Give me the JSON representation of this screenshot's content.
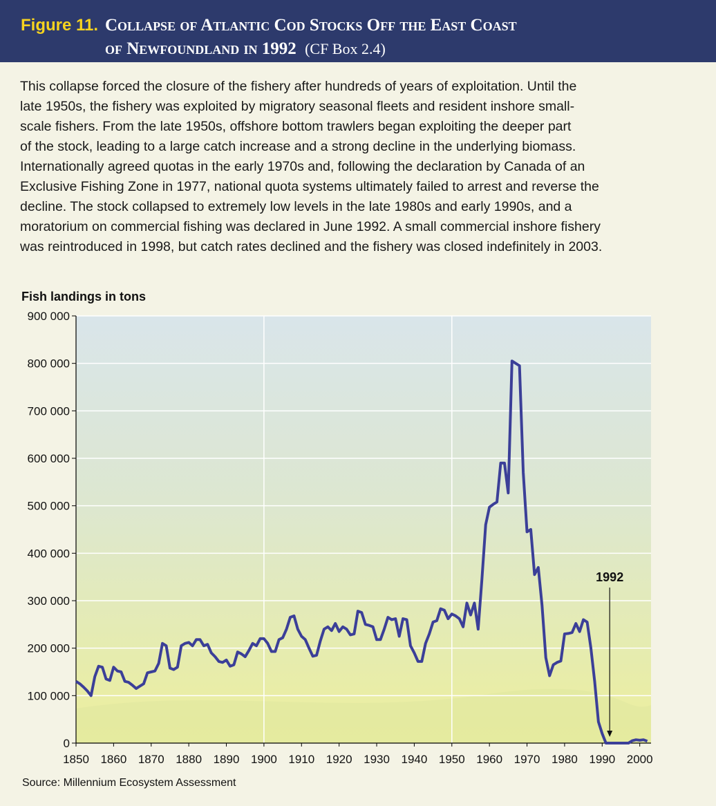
{
  "header": {
    "figure": "Figure 11.",
    "title": [
      "Collapse of Atlantic Cod Stocks Off the East Coast",
      "of Newfoundland in 1992"
    ],
    "note": "(CF Box 2.4)"
  },
  "body": [
    "This collapse forced the closure of the fishery after hundreds of years of exploitation. Until the",
    "late 1950s, the fishery was exploited by migratory seasonal fleets and resident inshore small-",
    "scale fishers. From the late 1950s, offshore bottom trawlers began exploiting the deeper part",
    "of the stock, leading to a large catch increase and a strong decline in the underlying biomass.",
    "Internationally agreed quotas in the early 1970s and, following the declaration by Canada of an",
    "Exclusive Fishing Zone in 1977, national quota systems ultimately failed to arrest and reverse the",
    "decline. The stock collapsed to extremely low levels in the late 1980s and early 1990s, and a",
    "moratorium on commercial fishing was declared in June 1992. A small commercial inshore fishery",
    "was reintroduced in 1998, but catch rates declined and the fishery was closed indefinitely in 2003."
  ],
  "chart_data": {
    "type": "line",
    "ylabel": "Fish landings in tons",
    "source": "Source: Millennium Ecosystem Assessment",
    "x": [
      1850,
      1851,
      1852,
      1853,
      1854,
      1855,
      1856,
      1857,
      1858,
      1859,
      1860,
      1861,
      1862,
      1863,
      1864,
      1865,
      1866,
      1867,
      1868,
      1869,
      1870,
      1871,
      1872,
      1873,
      1874,
      1875,
      1876,
      1877,
      1878,
      1879,
      1880,
      1881,
      1882,
      1883,
      1884,
      1885,
      1886,
      1887,
      1888,
      1889,
      1890,
      1891,
      1892,
      1893,
      1894,
      1895,
      1896,
      1897,
      1898,
      1899,
      1900,
      1901,
      1902,
      1903,
      1904,
      1905,
      1906,
      1907,
      1908,
      1909,
      1910,
      1911,
      1912,
      1913,
      1914,
      1915,
      1916,
      1917,
      1918,
      1919,
      1920,
      1921,
      1922,
      1923,
      1924,
      1925,
      1926,
      1927,
      1928,
      1929,
      1930,
      1931,
      1932,
      1933,
      1934,
      1935,
      1936,
      1937,
      1938,
      1939,
      1940,
      1941,
      1942,
      1943,
      1944,
      1945,
      1946,
      1947,
      1948,
      1949,
      1950,
      1951,
      1952,
      1953,
      1954,
      1955,
      1956,
      1957,
      1958,
      1959,
      1960,
      1961,
      1962,
      1963,
      1964,
      1965,
      1966,
      1967,
      1968,
      1969,
      1970,
      1971,
      1972,
      1973,
      1974,
      1975,
      1976,
      1977,
      1978,
      1979,
      1980,
      1981,
      1982,
      1983,
      1984,
      1985,
      1986,
      1987,
      1988,
      1989,
      1990,
      1991,
      1992,
      1993,
      1994,
      1995,
      1996,
      1997,
      1998,
      1999,
      2000,
      2001,
      2002
    ],
    "series": [
      {
        "name": "Fish landings",
        "color": "#3b3f98",
        "values": [
          130000,
          125000,
          118000,
          110000,
          100000,
          140000,
          162000,
          160000,
          135000,
          132000,
          160000,
          152000,
          150000,
          130000,
          128000,
          122000,
          115000,
          120000,
          125000,
          148000,
          150000,
          152000,
          168000,
          210000,
          205000,
          158000,
          155000,
          160000,
          205000,
          210000,
          212000,
          205000,
          218000,
          218000,
          205000,
          208000,
          190000,
          182000,
          172000,
          170000,
          175000,
          162000,
          165000,
          192000,
          188000,
          182000,
          195000,
          210000,
          205000,
          220000,
          220000,
          210000,
          193000,
          193000,
          218000,
          222000,
          240000,
          265000,
          268000,
          240000,
          225000,
          218000,
          200000,
          183000,
          185000,
          215000,
          240000,
          245000,
          237000,
          252000,
          235000,
          245000,
          240000,
          228000,
          230000,
          278000,
          275000,
          250000,
          248000,
          245000,
          218000,
          218000,
          240000,
          265000,
          260000,
          262000,
          225000,
          262000,
          260000,
          205000,
          190000,
          172000,
          172000,
          210000,
          230000,
          255000,
          258000,
          283000,
          280000,
          262000,
          272000,
          268000,
          262000,
          245000,
          295000,
          270000,
          295000,
          240000,
          345000,
          460000,
          497000,
          503000,
          508000,
          590000,
          590000,
          527000,
          805000,
          800000,
          795000,
          570000,
          445000,
          450000,
          355000,
          370000,
          290000,
          180000,
          142000,
          165000,
          170000,
          173000,
          230000,
          231000,
          233000,
          252000,
          235000,
          260000,
          255000,
          200000,
          130000,
          45000,
          20000,
          0,
          0,
          0,
          0,
          0,
          0,
          0,
          5000,
          7000,
          6000,
          7000,
          4000
        ]
      }
    ],
    "xlim": [
      1850,
      2003
    ],
    "xticks": [
      1850,
      1860,
      1870,
      1880,
      1890,
      1900,
      1910,
      1920,
      1930,
      1940,
      1950,
      1960,
      1970,
      1980,
      1990,
      2000
    ],
    "x_gridlines": [
      1900,
      1950
    ],
    "ylim": [
      0,
      900000
    ],
    "yticks": [
      0,
      {
        "value": 100000,
        "label": "100 000"
      },
      {
        "value": 200000,
        "label": "200 000"
      },
      {
        "value": 300000,
        "label": "300 000"
      },
      {
        "value": 400000,
        "label": "400 000"
      },
      {
        "value": 500000,
        "label": "500 000"
      },
      {
        "value": 600000,
        "label": "600 000"
      },
      {
        "value": 700000,
        "label": "700 000"
      },
      {
        "value": 800000,
        "label": "800 000"
      },
      {
        "value": 900000,
        "label": "900 000"
      }
    ],
    "grid": true,
    "annotation": {
      "text": "1992",
      "x": 1992
    }
  }
}
